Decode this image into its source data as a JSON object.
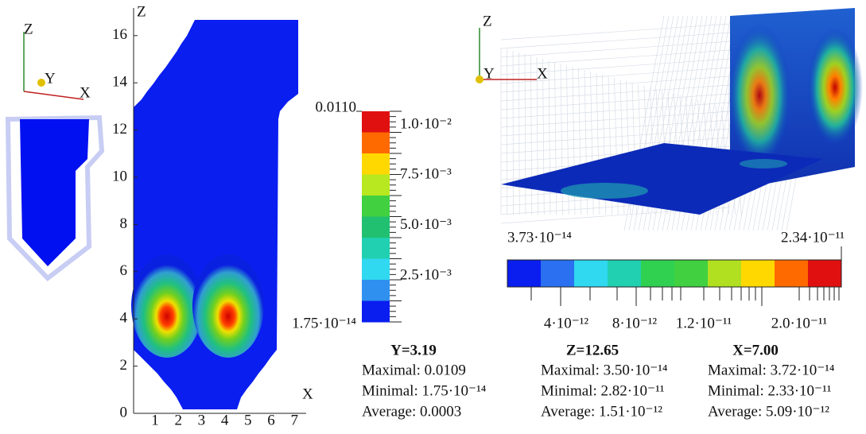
{
  "left": {
    "triad": [
      "Z",
      "Y",
      "X"
    ],
    "z_axis": "Z",
    "x_axis": "X",
    "z_ticks": [
      "0",
      "2",
      "4",
      "6",
      "8",
      "10",
      "12",
      "14",
      "16"
    ],
    "x_ticks": [
      "1",
      "2",
      "3",
      "4",
      "5",
      "6",
      "7"
    ],
    "colorbar": {
      "max": "0.0110",
      "min": "1.75·10⁻¹⁴",
      "labels": [
        "1.0·10⁻²",
        "7.5·10⁻³",
        "5.0·10⁻³",
        "2.5·10⁻³"
      ]
    },
    "stats": {
      "title": "Y=3.19",
      "lines": [
        "Maximal: 0.0109",
        "Minimal: 1.75·10⁻¹⁴",
        "Average: 0.0003"
      ]
    }
  },
  "right": {
    "triad": [
      "Z",
      "Y",
      "X"
    ],
    "colorbar": {
      "min": "3.73·10⁻¹⁴",
      "max": "2.34·10⁻¹¹",
      "labels": [
        "4·10⁻¹²",
        "8·10⁻¹²",
        "1.2·10⁻¹¹",
        "2.0·10⁻¹¹"
      ]
    },
    "stats": [
      {
        "title": "Z=12.65",
        "lines": [
          "Maximal: 3.50·10⁻¹⁴",
          "Minimal: 2.82·10⁻¹¹",
          "Average: 1.51·10⁻¹²"
        ]
      },
      {
        "title": "X=7.00",
        "lines": [
          "Maximal: 3.72·10⁻¹⁴",
          "Minimal: 2.33·10⁻¹¹",
          "Average: 5.09·10⁻¹²"
        ]
      }
    ]
  }
}
